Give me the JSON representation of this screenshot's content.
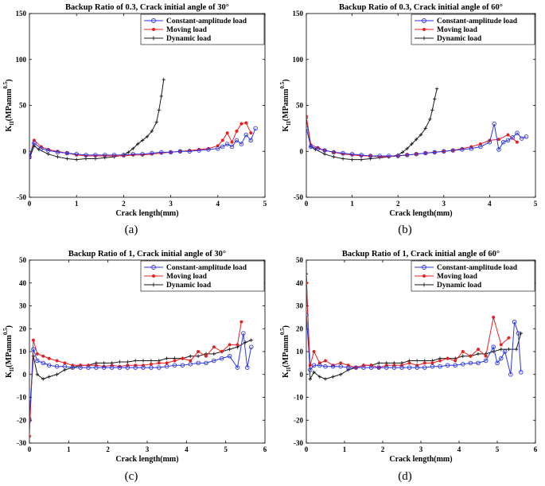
{
  "colors": {
    "constant": "#2b35e0",
    "moving": "#e82020",
    "dynamic": "#1a1a1a"
  },
  "chart_data": [
    {
      "type": "line",
      "caption": "(a)",
      "title": "Backup Ratio of 0.3, Crack initial angle of 30°",
      "xlabel": "Crack length(mm)",
      "ylabel_main": "K",
      "ylabel_sub": "II",
      "ylabel_rest": "(MPamm",
      "ylabel_sup": "0.5",
      "ylabel_close": ")",
      "xlim": [
        0,
        5
      ],
      "ylim": [
        -50,
        150
      ],
      "xticks": [
        0,
        1,
        2,
        3,
        4,
        5
      ],
      "yticks": [
        -50,
        0,
        50,
        100,
        150
      ],
      "legend_position": "top-right",
      "series": [
        {
          "name": "Constant-amplitude load",
          "key": "constant",
          "marker": "circle",
          "x": [
            0,
            0.1,
            0.25,
            0.4,
            0.6,
            0.8,
            1.0,
            1.2,
            1.4,
            1.6,
            1.8,
            2.0,
            2.2,
            2.4,
            2.6,
            2.8,
            3.0,
            3.2,
            3.4,
            3.6,
            3.8,
            4.0,
            4.1,
            4.2,
            4.3,
            4.4,
            4.5,
            4.6,
            4.7,
            4.8
          ],
          "y": [
            -6,
            9,
            3,
            1,
            -1,
            -2,
            -3,
            -4,
            -4,
            -4,
            -4,
            -4,
            -3,
            -3,
            -2,
            -1,
            -1,
            0,
            0,
            1,
            2,
            3,
            5,
            8,
            5,
            12,
            8,
            18,
            12,
            25
          ]
        },
        {
          "name": "Moving load",
          "key": "moving",
          "marker": "star",
          "x": [
            0,
            0.1,
            0.25,
            0.4,
            0.6,
            0.8,
            1.0,
            1.2,
            1.4,
            1.6,
            1.8,
            2.0,
            2.2,
            2.4,
            2.6,
            2.8,
            3.0,
            3.2,
            3.4,
            3.6,
            3.8,
            4.0,
            4.1,
            4.2,
            4.3,
            4.4,
            4.5,
            4.6,
            4.7
          ],
          "y": [
            -6,
            12,
            5,
            2,
            0,
            -2,
            -4,
            -5,
            -5,
            -5,
            -5,
            -5,
            -4,
            -4,
            -3,
            -2,
            -1,
            0,
            1,
            2,
            3,
            6,
            12,
            20,
            10,
            22,
            30,
            31,
            20
          ]
        },
        {
          "name": "Dynamic load",
          "key": "dynamic",
          "marker": "plus",
          "x": [
            0,
            0.1,
            0.2,
            0.4,
            0.6,
            0.8,
            1.0,
            1.2,
            1.4,
            1.6,
            1.8,
            2.0,
            2.1,
            2.2,
            2.3,
            2.4,
            2.5,
            2.6,
            2.7,
            2.75,
            2.8,
            2.85
          ],
          "y": [
            -8,
            6,
            2,
            -3,
            -6,
            -8,
            -9,
            -8,
            -8,
            -7,
            -6,
            -4,
            -1,
            3,
            8,
            12,
            16,
            22,
            32,
            45,
            60,
            78
          ]
        }
      ]
    },
    {
      "type": "line",
      "caption": "(b)",
      "title": "Backup Ratio of 0.3, Crack initial angle of 60°",
      "xlabel": "Crack length(mm)",
      "ylabel_main": "K",
      "ylabel_sub": "II",
      "ylabel_rest": "(MPamm",
      "ylabel_sup": "0.5",
      "ylabel_close": ")",
      "xlim": [
        0,
        5
      ],
      "ylim": [
        -50,
        150
      ],
      "xticks": [
        0,
        1,
        2,
        3,
        4,
        5
      ],
      "yticks": [
        -50,
        0,
        50,
        100,
        150
      ],
      "legend_position": "top-right",
      "series": [
        {
          "name": "Constant-amplitude load",
          "key": "constant",
          "marker": "circle",
          "x": [
            0,
            0.1,
            0.25,
            0.4,
            0.6,
            0.8,
            1.0,
            1.2,
            1.4,
            1.6,
            1.8,
            2.0,
            2.2,
            2.4,
            2.6,
            2.8,
            3.0,
            3.2,
            3.4,
            3.6,
            3.8,
            4.0,
            4.1,
            4.2,
            4.3,
            4.4,
            4.5,
            4.6,
            4.7,
            4.8
          ],
          "y": [
            25,
            5,
            3,
            1,
            -1,
            -2,
            -3,
            -4,
            -5,
            -5,
            -5,
            -5,
            -4,
            -3,
            -2,
            -1,
            0,
            1,
            2,
            3,
            5,
            10,
            30,
            2,
            10,
            12,
            15,
            20,
            14,
            16
          ]
        },
        {
          "name": "Moving load",
          "key": "moving",
          "marker": "star",
          "x": [
            0,
            0.1,
            0.25,
            0.4,
            0.6,
            0.8,
            1.0,
            1.2,
            1.4,
            1.6,
            1.8,
            2.0,
            2.2,
            2.4,
            2.6,
            2.8,
            3.0,
            3.2,
            3.4,
            3.6,
            3.8,
            4.0,
            4.2,
            4.4,
            4.6
          ],
          "y": [
            38,
            7,
            4,
            1,
            -1,
            -3,
            -4,
            -5,
            -5,
            -6,
            -6,
            -5,
            -4,
            -3,
            -2,
            -1,
            0,
            1,
            3,
            5,
            8,
            12,
            13,
            18,
            10
          ]
        },
        {
          "name": "Dynamic load",
          "key": "dynamic",
          "marker": "plus",
          "x": [
            0,
            0.1,
            0.2,
            0.4,
            0.6,
            0.8,
            1.0,
            1.2,
            1.4,
            1.6,
            1.8,
            2.0,
            2.1,
            2.2,
            2.3,
            2.4,
            2.5,
            2.6,
            2.7,
            2.75,
            2.8,
            2.85
          ],
          "y": [
            36,
            5,
            2,
            -3,
            -6,
            -8,
            -9,
            -9,
            -8,
            -7,
            -6,
            -4,
            -1,
            3,
            8,
            13,
            18,
            25,
            35,
            45,
            57,
            68
          ]
        }
      ]
    },
    {
      "type": "line",
      "caption": "(c)",
      "title": "Backup Ratio of 1, Crack initial angle of 30°",
      "xlabel": "Crack length(mm)",
      "ylabel_main": "K",
      "ylabel_sub": "II",
      "ylabel_rest": "(MPamm",
      "ylabel_sup": "0.5",
      "ylabel_close": ")",
      "xlim": [
        0,
        6
      ],
      "ylim": [
        -30,
        50
      ],
      "xticks": [
        0,
        1,
        2,
        3,
        4,
        5,
        6
      ],
      "yticks": [
        -30,
        -20,
        -10,
        0,
        10,
        20,
        30,
        40,
        50
      ],
      "legend_position": "top-right",
      "series": [
        {
          "name": "Constant-amplitude load",
          "key": "constant",
          "marker": "circle",
          "x": [
            0,
            0.1,
            0.2,
            0.35,
            0.5,
            0.7,
            0.9,
            1.1,
            1.3,
            1.5,
            1.7,
            1.9,
            2.1,
            2.3,
            2.5,
            2.7,
            2.9,
            3.1,
            3.3,
            3.5,
            3.7,
            3.9,
            4.1,
            4.3,
            4.5,
            4.7,
            4.9,
            5.1,
            5.3,
            5.45,
            5.55,
            5.65
          ],
          "y": [
            -20,
            11,
            6,
            5,
            4,
            3.5,
            3.5,
            3,
            3,
            3,
            3,
            3,
            3,
            3,
            3,
            3,
            3,
            3,
            3,
            3.5,
            4,
            4,
            4.5,
            5,
            5,
            6,
            7,
            8,
            3,
            18,
            3,
            12
          ]
        },
        {
          "name": "Moving load",
          "key": "moving",
          "marker": "star",
          "x": [
            0,
            0.1,
            0.2,
            0.35,
            0.5,
            0.7,
            0.9,
            1.1,
            1.3,
            1.5,
            1.7,
            1.9,
            2.1,
            2.3,
            2.5,
            2.7,
            2.9,
            3.1,
            3.3,
            3.5,
            3.7,
            3.9,
            4.1,
            4.3,
            4.5,
            4.7,
            4.9,
            5.1,
            5.3,
            5.4
          ],
          "y": [
            -27,
            15,
            9,
            8,
            7,
            6,
            5,
            4,
            4,
            4,
            4,
            3.5,
            4,
            3.5,
            4,
            4,
            4,
            4.5,
            5,
            5,
            6,
            7,
            6,
            10,
            8,
            12,
            10,
            13,
            13,
            23
          ]
        },
        {
          "name": "Dynamic load",
          "key": "dynamic",
          "marker": "plus",
          "x": [
            0,
            0.1,
            0.2,
            0.35,
            0.5,
            0.7,
            0.9,
            1.1,
            1.3,
            1.5,
            1.7,
            1.9,
            2.1,
            2.3,
            2.5,
            2.7,
            2.9,
            3.1,
            3.3,
            3.5,
            3.7,
            3.9,
            4.1,
            4.3,
            4.5,
            4.7,
            4.9,
            5.1,
            5.3,
            5.5,
            5.65
          ],
          "y": [
            -19,
            8,
            0,
            -2,
            -1,
            0,
            2,
            3,
            4,
            4,
            5,
            5,
            5,
            5.5,
            5.5,
            6,
            6,
            6,
            6,
            7,
            7,
            7,
            8,
            8,
            9,
            9,
            10,
            11,
            12,
            14,
            15
          ]
        }
      ]
    },
    {
      "type": "line",
      "caption": "(d)",
      "title": "Backup Ratio of 1, Crack initial angle of 60°",
      "xlabel": "Crack length(mm)",
      "ylabel_main": "K",
      "ylabel_sub": "II",
      "ylabel_rest": "(MPamm",
      "ylabel_sup": "0.5",
      "ylabel_close": ")",
      "xlim": [
        0,
        6
      ],
      "ylim": [
        -30,
        50
      ],
      "xticks": [
        0,
        1,
        2,
        3,
        4,
        5,
        6
      ],
      "yticks": [
        -30,
        -20,
        -10,
        0,
        10,
        20,
        30,
        40,
        50
      ],
      "legend_position": "top-right",
      "series": [
        {
          "name": "Constant-amplitude load",
          "key": "constant",
          "marker": "circle",
          "x": [
            0,
            0.1,
            0.2,
            0.35,
            0.5,
            0.7,
            0.9,
            1.1,
            1.3,
            1.5,
            1.7,
            1.9,
            2.1,
            2.3,
            2.5,
            2.7,
            2.9,
            3.1,
            3.3,
            3.5,
            3.7,
            3.9,
            4.1,
            4.3,
            4.5,
            4.7,
            4.9,
            5.0,
            5.1,
            5.2,
            5.35,
            5.45,
            5.55,
            5.62
          ],
          "y": [
            26,
            2,
            4,
            4,
            3.5,
            3.5,
            3.5,
            3,
            3,
            3,
            3,
            3,
            3,
            3,
            3,
            3,
            3,
            3,
            3.5,
            3.5,
            4,
            4,
            4.5,
            5,
            5,
            6,
            12,
            5,
            7,
            10,
            0,
            23,
            18,
            1
          ]
        },
        {
          "name": "Moving load",
          "key": "moving",
          "marker": "star",
          "x": [
            0,
            0.1,
            0.2,
            0.35,
            0.5,
            0.7,
            0.9,
            1.1,
            1.3,
            1.5,
            1.7,
            1.9,
            2.1,
            2.3,
            2.5,
            2.7,
            2.9,
            3.1,
            3.3,
            3.5,
            3.7,
            3.9,
            4.1,
            4.3,
            4.5,
            4.7,
            4.9,
            5.1,
            5.3
          ],
          "y": [
            40,
            4,
            10,
            5,
            6,
            4,
            5,
            4,
            3,
            4,
            4,
            3,
            4,
            4,
            4,
            5,
            4,
            5,
            5,
            6,
            7,
            6,
            10,
            8,
            11,
            8,
            25,
            13,
            16
          ]
        },
        {
          "name": "Dynamic load",
          "key": "dynamic",
          "marker": "plus",
          "x": [
            0,
            0.1,
            0.2,
            0.35,
            0.5,
            0.7,
            0.9,
            1.1,
            1.3,
            1.5,
            1.7,
            1.9,
            2.1,
            2.3,
            2.5,
            2.7,
            2.9,
            3.1,
            3.3,
            3.5,
            3.7,
            3.9,
            4.1,
            4.3,
            4.5,
            4.7,
            4.9,
            5.1,
            5.3,
            5.5,
            5.62
          ],
          "y": [
            44,
            -2,
            1,
            -1,
            -2,
            -1,
            0,
            2,
            3,
            4,
            4,
            5,
            5,
            5,
            5,
            6,
            6,
            6,
            6,
            7,
            7,
            7,
            8,
            8,
            9,
            9,
            10,
            11,
            11,
            11,
            18
          ]
        }
      ]
    }
  ]
}
